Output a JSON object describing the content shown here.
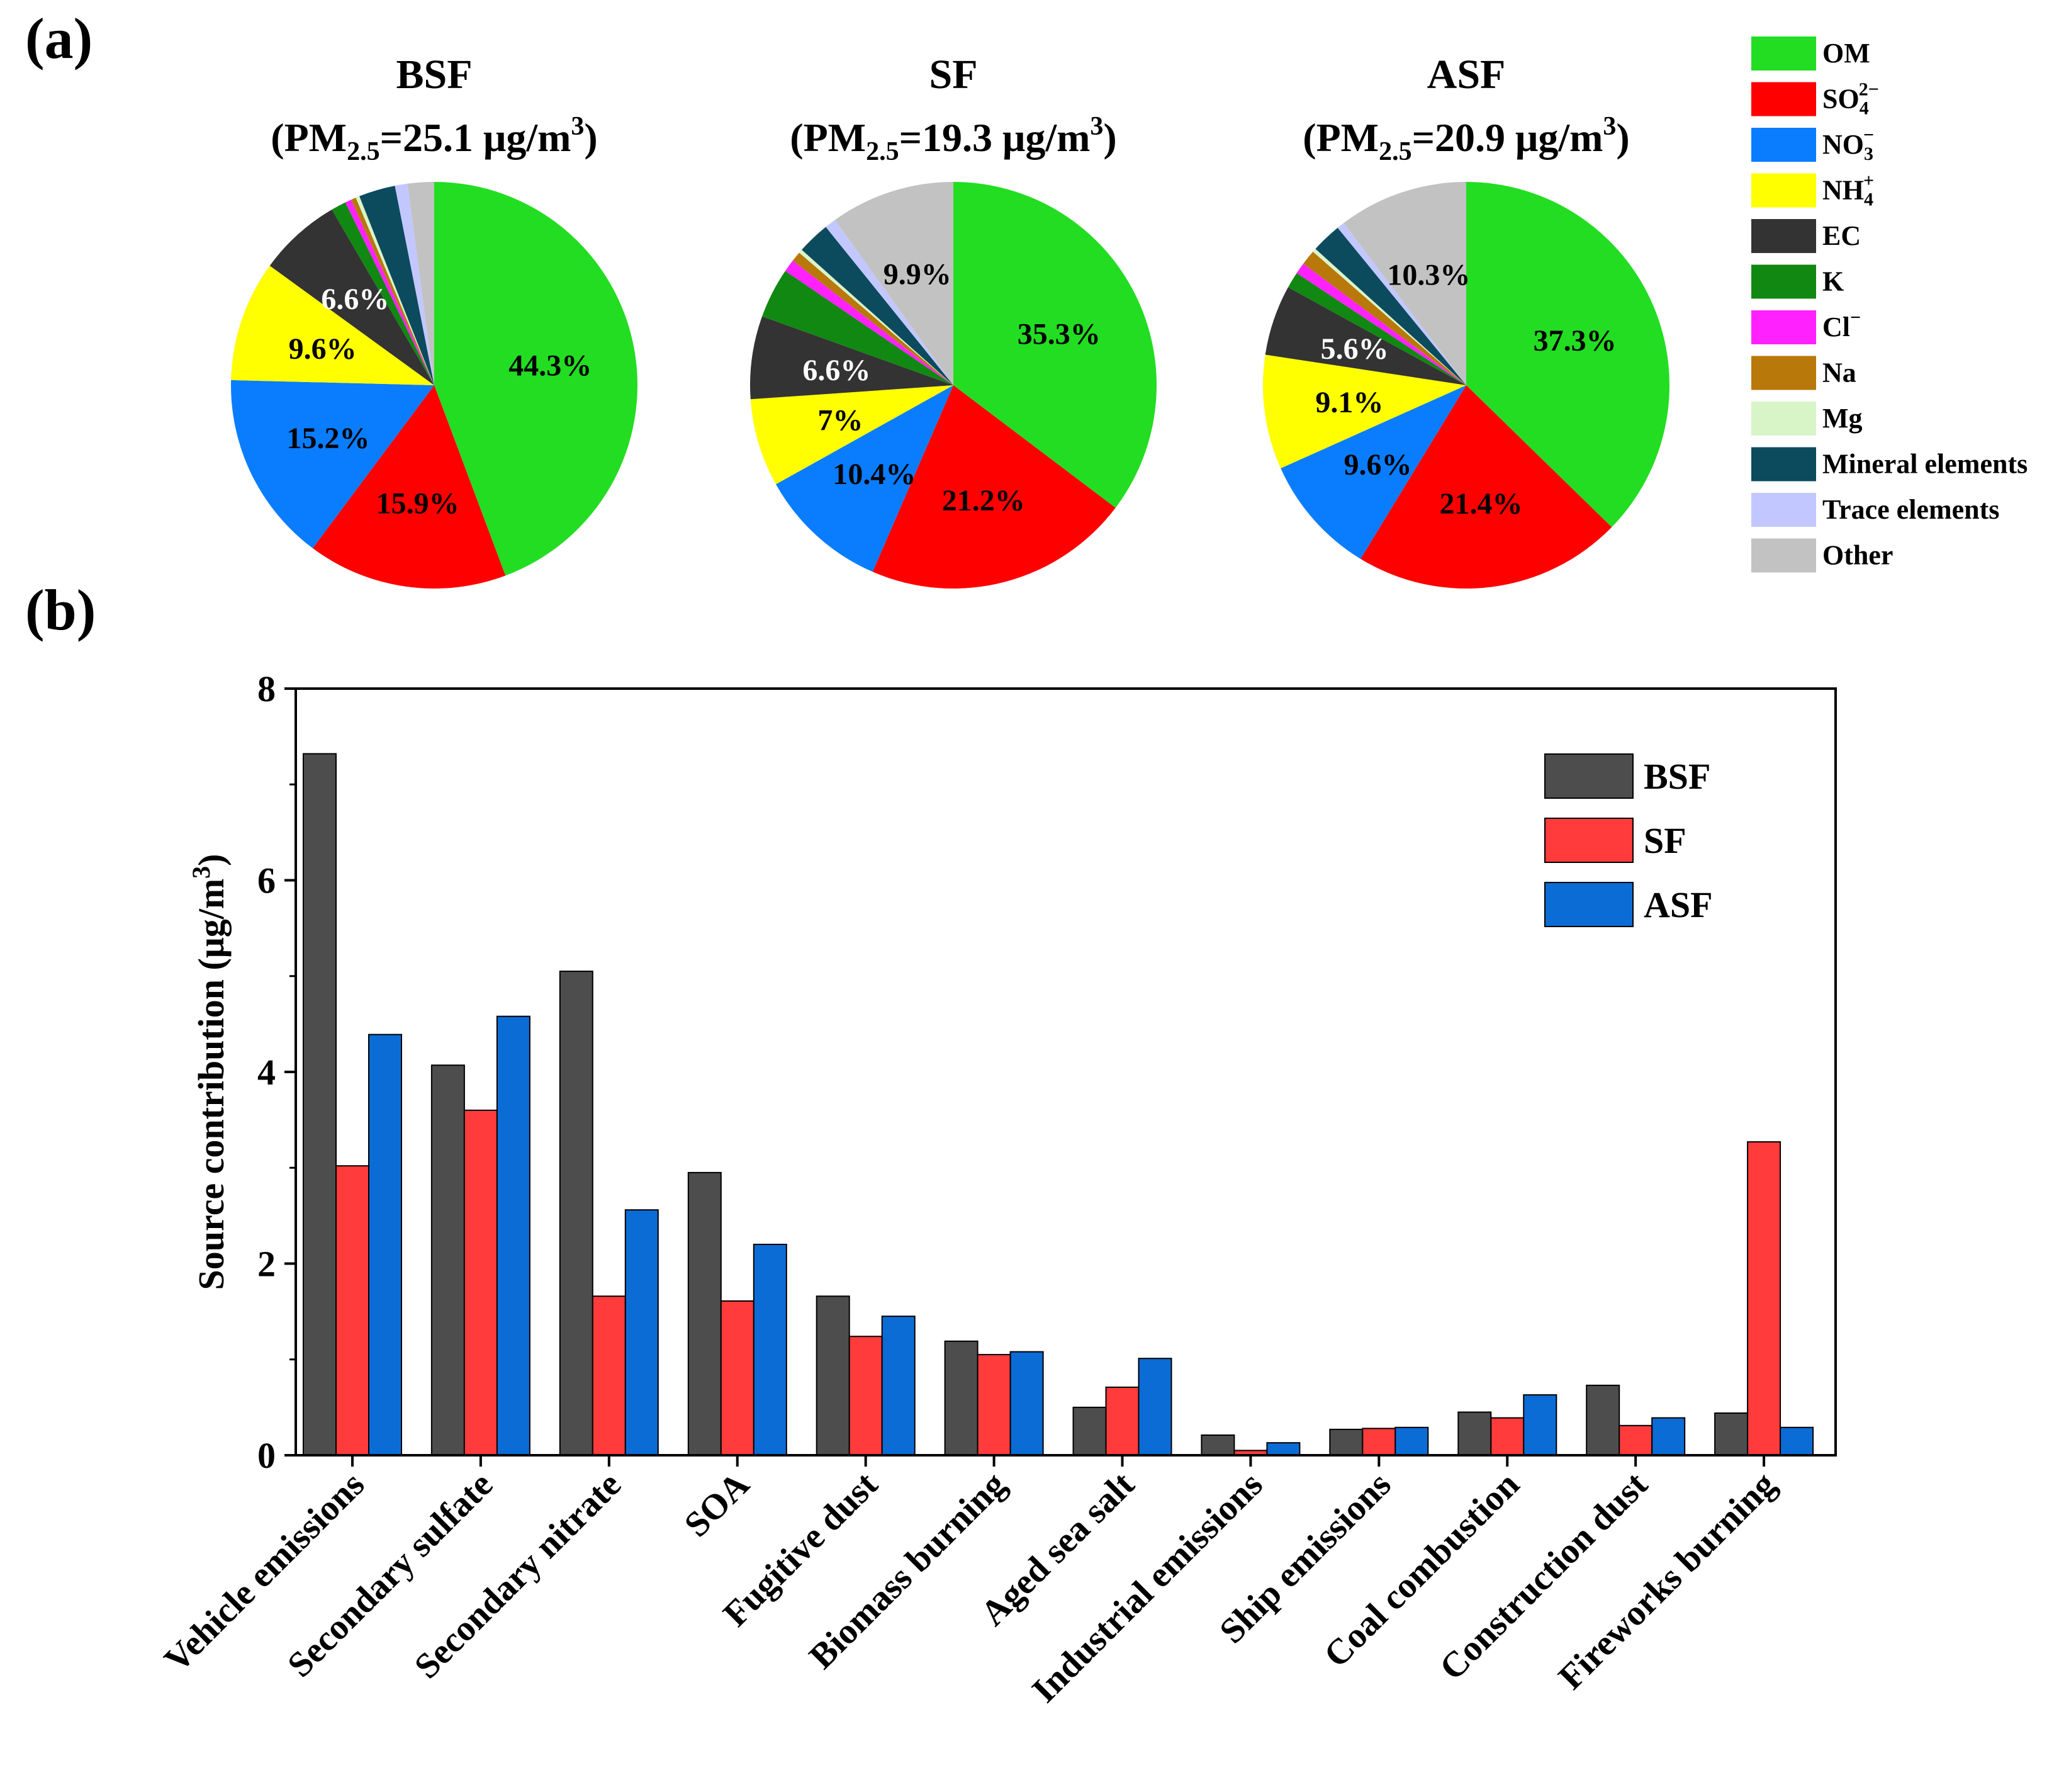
{
  "panel_labels": {
    "a": "(a)",
    "b": "(b)"
  },
  "chart_data": [
    {
      "type": "pie",
      "panel": "(a)",
      "legend_position": "right",
      "components": [
        {
          "label": "OM",
          "sub": "",
          "sup": "",
          "color": "#22dd22"
        },
        {
          "label": "SO",
          "sub": "4",
          "sup": "2−",
          "color": "#ff0000"
        },
        {
          "label": "NO",
          "sub": "3",
          "sup": "−",
          "color": "#0a7dff"
        },
        {
          "label": "NH",
          "sub": "4",
          "sup": "+",
          "color": "#ffff00"
        },
        {
          "label": "EC",
          "sub": "",
          "sup": "",
          "color": "#333333"
        },
        {
          "label": "K",
          "sub": "",
          "sup": "",
          "color": "#118811"
        },
        {
          "label": "Cl",
          "sub": "",
          "sup": "−",
          "color": "#ff22ff"
        },
        {
          "label": "Na",
          "sub": "",
          "sup": "",
          "color": "#b8780a"
        },
        {
          "label": "Mg",
          "sub": "",
          "sup": "",
          "color": "#d8f5c8"
        },
        {
          "label": "Mineral elements",
          "sub": "",
          "sup": "",
          "color": "#0c4a5e"
        },
        {
          "label": "Trace elements",
          "sub": "",
          "sup": "",
          "color": "#c2c8ff"
        },
        {
          "label": "Other",
          "sub": "",
          "sup": "",
          "color": "#c2c2c2"
        }
      ],
      "pies": [
        {
          "title": "BSF",
          "subtitle_pre": "(PM",
          "subtitle_sub": "2.5",
          "subtitle_mid": "=25.1 μg/m",
          "subtitle_sup": "3",
          "subtitle_post": ")",
          "values": [
            44.3,
            15.9,
            15.2,
            9.6,
            6.6,
            1.2,
            0.5,
            0.4,
            0.3,
            2.9,
            1.0,
            2.1
          ],
          "labels": [
            "44.3%",
            "15.9%",
            "15.2%",
            "9.6%",
            "6.6%",
            "",
            "",
            "",
            "",
            "",
            "",
            ""
          ],
          "label_colors": [
            "#000000",
            "#000000",
            "#000000",
            "#000000",
            "#ffffff"
          ]
        },
        {
          "title": "SF",
          "subtitle_pre": "(PM",
          "subtitle_sub": "2.5",
          "subtitle_mid": "=19.3 μg/m",
          "subtitle_sup": "3",
          "subtitle_post": ")",
          "values": [
            35.3,
            21.2,
            10.4,
            7.0,
            6.6,
            4.0,
            1.0,
            0.8,
            0.3,
            2.6,
            0.9,
            9.9
          ],
          "labels": [
            "35.3%",
            "21.2%",
            "10.4%",
            "7%",
            "6.6%",
            "",
            "",
            "",
            "",
            "",
            "",
            "9.9%"
          ],
          "label_colors": [
            "#000000",
            "#000000",
            "#000000",
            "#000000",
            "#ffffff"
          ]
        },
        {
          "title": "ASF",
          "subtitle_pre": "(PM",
          "subtitle_sub": "2.5",
          "subtitle_mid": "=20.9 μg/m",
          "subtitle_sup": "3",
          "subtitle_post": ")",
          "values": [
            37.3,
            21.4,
            9.6,
            9.1,
            5.6,
            1.3,
            0.9,
            1.2,
            0.3,
            2.4,
            0.6,
            10.3
          ],
          "labels": [
            "37.3%",
            "21.4%",
            "9.6%",
            "9.1%",
            "5.6%",
            "",
            "",
            "",
            "",
            "",
            "",
            "10.3%"
          ],
          "label_colors": [
            "#000000",
            "#000000",
            "#000000",
            "#000000",
            "#ffffff"
          ]
        }
      ]
    },
    {
      "type": "bar",
      "panel": "(b)",
      "ylabel_pre": "Source contribution (μg/m",
      "ylabel_sup": "3",
      "ylabel_post": ")",
      "ylim": [
        0,
        8
      ],
      "yticks": [
        0,
        2,
        4,
        6,
        8
      ],
      "legend_position": "top-right",
      "categories": [
        "Vehicle emissions",
        "Secondary sulfate",
        "Secondary nitrate",
        "SOA",
        "Fugitive dust",
        "Biomass burning",
        "Aged sea salt",
        "Industrial emissions",
        "Ship emissions",
        "Coal combustion",
        "Construction dust",
        "Fireworks burning"
      ],
      "series": [
        {
          "name": "BSF",
          "color": "#4d4d4d",
          "values": [
            7.32,
            4.07,
            5.05,
            2.95,
            1.66,
            1.19,
            0.5,
            0.21,
            0.27,
            0.45,
            0.73,
            0.44
          ]
        },
        {
          "name": "SF",
          "color": "#ff3b3b",
          "values": [
            3.02,
            3.6,
            1.66,
            1.61,
            1.24,
            1.05,
            0.71,
            0.05,
            0.28,
            0.39,
            0.31,
            3.27
          ]
        },
        {
          "name": "ASF",
          "color": "#0c6cd6",
          "values": [
            4.39,
            4.58,
            2.56,
            2.2,
            1.45,
            1.08,
            1.01,
            0.13,
            0.29,
            0.63,
            0.39,
            0.29
          ]
        }
      ]
    }
  ]
}
